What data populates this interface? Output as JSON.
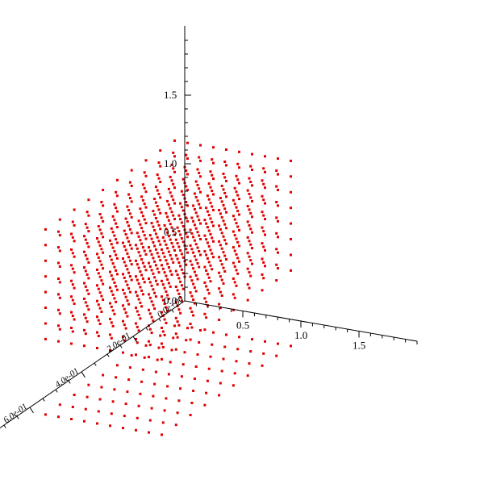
{
  "chart_data": {
    "type": "scatter",
    "dimensions": 3,
    "axes": {
      "x": {
        "range": [
          0,
          2
        ],
        "ticks": [
          0.5,
          1.0,
          1.5
        ],
        "tick_labels": [
          "0.5",
          "1.0",
          "1.5"
        ]
      },
      "y": {
        "range": [
          0,
          0.8
        ],
        "ticks": [
          0,
          0.2,
          0.4,
          0.6
        ],
        "tick_labels": [
          "0.0e+00",
          "2.0e-01",
          "4.0e-01",
          "6.0e-01"
        ]
      },
      "z": {
        "range": [
          0,
          2
        ],
        "ticks": [
          0.0,
          0.5,
          1.0,
          1.5
        ],
        "tick_labels": [
          "0.0",
          "0.5",
          "1.0",
          "1.5"
        ]
      }
    },
    "series": [
      {
        "grid_x": [
          0.18,
          1.18
        ],
        "grid_y": [
          0.12,
          0.62
        ],
        "z": [
          0.55,
          1.35
        ],
        "steps": [
          10,
          10,
          8
        ],
        "points": "regular lattice"
      },
      {
        "grid_x": [
          0.18,
          1.18
        ],
        "grid_y": [
          0.12,
          0.62
        ],
        "z": [
          0.0
        ],
        "steps": [
          10,
          10,
          1
        ],
        "points": "projection on floor"
      }
    ],
    "colors": {
      "points": "#e00000",
      "axes": "#000000"
    },
    "grid": false,
    "legend": "none"
  }
}
